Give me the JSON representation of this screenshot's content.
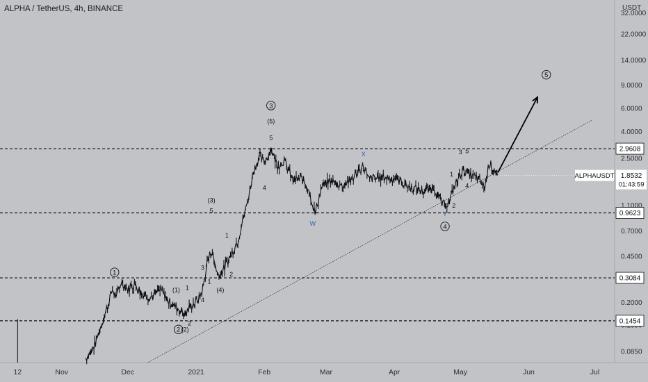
{
  "header": {
    "title": "ALPHA / TetherUS, 4h, BINANCE",
    "currency": "USDT"
  },
  "colors": {
    "background": "#c1c3c7",
    "candles": "#0e0f12",
    "wave_blue": "#2f5fb3",
    "label_box": "#ffffff"
  },
  "chart_data": {
    "type": "line",
    "symbol": "ALPHAUSDT",
    "price_scale": "log",
    "ylim": [
      0.07,
      40
    ],
    "xlim": [
      "2020-10-04",
      "2021-07-10"
    ],
    "y_ticks": [
      "0.0850",
      "0.1350",
      "0.2000",
      "0.3000",
      "0.4500",
      "0.7000",
      "1.1000",
      "2.5000",
      "4.0000",
      "6.0000",
      "9.0000",
      "14.0000",
      "22.0000",
      "32.0000"
    ],
    "x_ticks": [
      {
        "label": "12",
        "date": "2020-10-12"
      },
      {
        "label": "Nov",
        "date": "2020-11-01"
      },
      {
        "label": "Dec",
        "date": "2020-12-01"
      },
      {
        "label": "2021",
        "date": "2021-01-01"
      },
      {
        "label": "Feb",
        "date": "2021-02-01"
      },
      {
        "label": "Mar",
        "date": "2021-03-01"
      },
      {
        "label": "Apr",
        "date": "2021-04-01"
      },
      {
        "label": "May",
        "date": "2021-05-01"
      },
      {
        "label": "Jun",
        "date": "2021-06-01"
      },
      {
        "label": "Jul",
        "date": "2021-07-01"
      }
    ],
    "price": [
      [
        "2020-10-12",
        0.15
      ],
      [
        "2020-10-12",
        0.07
      ],
      [
        "2020-11-12",
        0.075
      ],
      [
        "2020-11-16",
        0.095
      ],
      [
        "2020-11-18",
        0.12
      ],
      [
        "2020-11-21",
        0.17
      ],
      [
        "2020-11-24",
        0.25
      ],
      [
        "2020-11-26",
        0.22
      ],
      [
        "2020-11-28",
        0.29
      ],
      [
        "2020-12-01",
        0.25
      ],
      [
        "2020-12-04",
        0.28
      ],
      [
        "2020-12-08",
        0.23
      ],
      [
        "2020-12-12",
        0.22
      ],
      [
        "2020-12-16",
        0.25
      ],
      [
        "2020-12-20",
        0.2
      ],
      [
        "2020-12-24",
        0.18
      ],
      [
        "2020-12-27",
        0.165
      ],
      [
        "2020-12-30",
        0.19
      ],
      [
        "2021-01-02",
        0.21
      ],
      [
        "2021-01-04",
        0.25
      ],
      [
        "2021-01-06",
        0.4
      ],
      [
        "2021-01-08",
        0.5
      ],
      [
        "2021-01-11",
        0.32
      ],
      [
        "2021-01-14",
        0.37
      ],
      [
        "2021-01-17",
        0.47
      ],
      [
        "2021-01-20",
        0.6
      ],
      [
        "2021-01-23",
        0.95
      ],
      [
        "2021-01-25",
        1.3
      ],
      [
        "2021-01-27",
        2.0
      ],
      [
        "2021-01-30",
        2.6
      ],
      [
        "2021-02-01",
        2.3
      ],
      [
        "2021-02-04",
        2.95
      ],
      [
        "2021-02-07",
        2.2
      ],
      [
        "2021-02-10",
        2.4
      ],
      [
        "2021-02-14",
        1.7
      ],
      [
        "2021-02-18",
        1.75
      ],
      [
        "2021-02-21",
        1.5
      ],
      [
        "2021-02-24",
        0.95
      ],
      [
        "2021-02-27",
        1.5
      ],
      [
        "2021-03-03",
        1.7
      ],
      [
        "2021-03-08",
        1.55
      ],
      [
        "2021-03-13",
        1.75
      ],
      [
        "2021-03-18",
        2.2
      ],
      [
        "2021-03-20",
        1.75
      ],
      [
        "2021-03-27",
        1.8
      ],
      [
        "2021-04-02",
        1.75
      ],
      [
        "2021-04-08",
        1.5
      ],
      [
        "2021-04-15",
        1.4
      ],
      [
        "2021-04-19",
        1.5
      ],
      [
        "2021-04-23",
        1.1
      ],
      [
        "2021-04-26",
        1.15
      ],
      [
        "2021-04-28",
        1.5
      ],
      [
        "2021-05-02",
        2.05
      ],
      [
        "2021-05-06",
        1.85
      ],
      [
        "2021-05-09",
        1.75
      ],
      [
        "2021-05-12",
        1.5
      ],
      [
        "2021-05-14",
        2.3
      ],
      [
        "2021-05-16",
        2.1
      ],
      [
        "2021-05-18",
        1.85
      ]
    ],
    "horizontal_levels": [
      {
        "value": 2.9608,
        "label": "2.9608"
      },
      {
        "value": 0.9623,
        "label": "0.9623"
      },
      {
        "value": 0.3084,
        "label": "0.3084"
      },
      {
        "value": 0.1454,
        "label": "0.1454"
      }
    ],
    "trendline": [
      [
        "2020-12-10",
        0.07
      ],
      [
        "2021-06-30",
        4.9
      ]
    ],
    "forecast_arrow": [
      [
        "2021-05-18",
        1.95
      ],
      [
        "2021-06-05",
        7.3
      ]
    ],
    "last_price": {
      "symbol": "ALPHAUSDT",
      "value": 1.8532,
      "label": "1.8532",
      "countdown": "01:43:59"
    },
    "annotations": [
      {
        "text": "1",
        "circled": true,
        "date": "2020-11-25",
        "price": 0.34
      },
      {
        "text": "2",
        "circled": true,
        "date": "2020-12-24",
        "price": 0.125
      },
      {
        "text": "(2)",
        "circled": false,
        "date": "2020-12-27",
        "price": 0.125
      },
      {
        "text": "2",
        "circled": false,
        "date": "2020-12-29",
        "price": 0.14
      },
      {
        "text": "(1)",
        "circled": false,
        "date": "2020-12-23",
        "price": 0.25
      },
      {
        "text": "1",
        "circled": false,
        "date": "2020-12-28",
        "price": 0.26
      },
      {
        "text": "4",
        "circled": false,
        "date": "2021-01-04",
        "price": 0.21
      },
      {
        "text": "3",
        "circled": false,
        "date": "2021-01-04",
        "price": 0.37
      },
      {
        "text": "1",
        "circled": false,
        "date": "2021-01-07",
        "price": 0.29
      },
      {
        "text": "(4)",
        "circled": false,
        "date": "2021-01-12",
        "price": 0.25
      },
      {
        "text": "2",
        "circled": false,
        "date": "2021-01-17",
        "price": 0.33
      },
      {
        "text": "(3)",
        "circled": false,
        "date": "2021-01-08",
        "price": 1.2
      },
      {
        "text": "5",
        "circled": false,
        "date": "2021-01-08",
        "price": 1.0
      },
      {
        "text": "1",
        "circled": false,
        "date": "2021-01-15",
        "price": 0.65
      },
      {
        "text": "3",
        "circled": false,
        "date": "2021-01-30",
        "price": 2.7
      },
      {
        "text": "4",
        "circled": false,
        "date": "2021-02-01",
        "price": 1.5
      },
      {
        "text": "3",
        "circled": true,
        "date": "2021-02-04",
        "price": 6.3
      },
      {
        "text": "(5)",
        "circled": false,
        "date": "2021-02-04",
        "price": 4.8
      },
      {
        "text": "5",
        "circled": false,
        "date": "2021-02-04",
        "price": 3.6
      },
      {
        "text": "W",
        "circled": false,
        "blue": true,
        "date": "2021-02-23",
        "price": 0.8
      },
      {
        "text": "X",
        "circled": false,
        "blue": true,
        "date": "2021-03-18",
        "price": 2.7
      },
      {
        "text": "1",
        "circled": false,
        "date": "2021-04-27",
        "price": 1.9
      },
      {
        "text": "3",
        "circled": false,
        "date": "2021-05-01",
        "price": 2.8
      },
      {
        "text": "5",
        "circled": false,
        "date": "2021-05-04",
        "price": 2.85
      },
      {
        "text": "4",
        "circled": false,
        "date": "2021-05-04",
        "price": 1.55
      },
      {
        "text": "2",
        "circled": false,
        "date": "2021-04-28",
        "price": 1.1
      },
      {
        "text": "Y",
        "circled": false,
        "blue": true,
        "date": "2021-04-24",
        "price": 0.95
      },
      {
        "text": "4",
        "circled": true,
        "date": "2021-04-24",
        "price": 0.76
      },
      {
        "text": "5",
        "circled": true,
        "date": "2021-06-09",
        "price": 10.8
      }
    ]
  }
}
